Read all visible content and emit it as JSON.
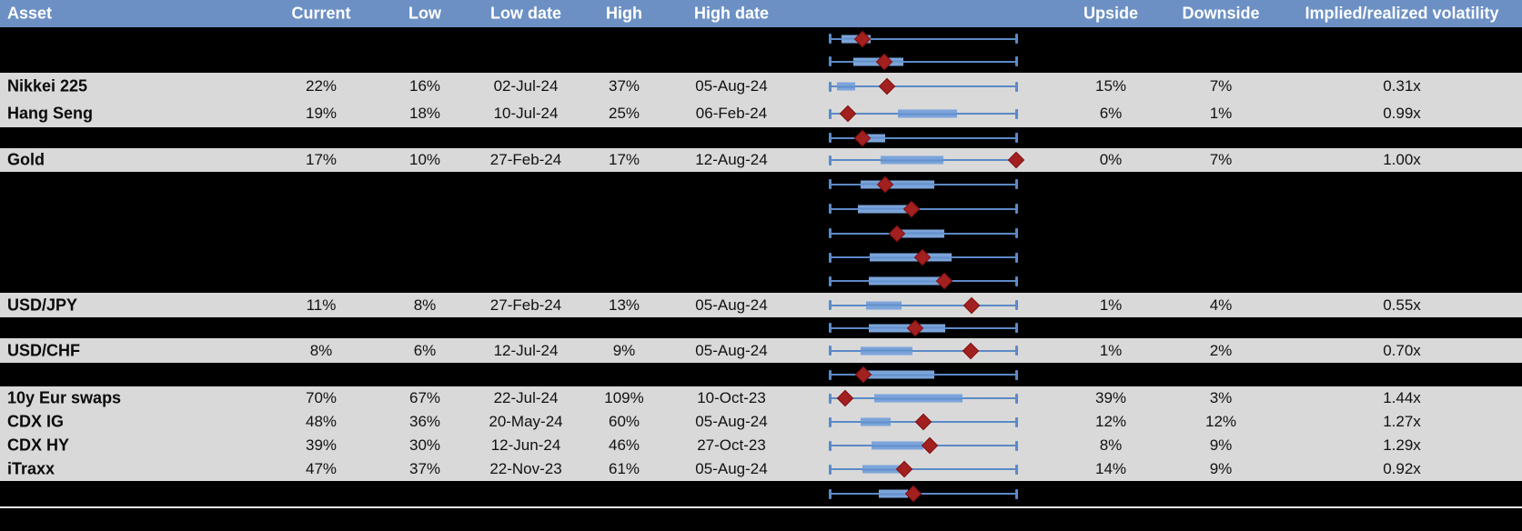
{
  "title": "Implied volatility ranges table with box-whisker charts",
  "colors": {
    "header_bg": "#6C90C4",
    "header_text": "#FFFFFF",
    "light_row_bg": "#D9D9D9",
    "dark_row_bg": "#000000",
    "whisker_blue": "#5B8AC6",
    "box_blue": "#7BA4DA",
    "marker_red": "#A32020",
    "separator": "#E9E9E9"
  },
  "header": {
    "columns": [
      {
        "key": "asset",
        "label": "Asset"
      },
      {
        "key": "current",
        "label": "Current"
      },
      {
        "key": "low",
        "label": "Low"
      },
      {
        "key": "low_date",
        "label": "Low date"
      },
      {
        "key": "high",
        "label": "High"
      },
      {
        "key": "high_date",
        "label": "High date"
      },
      {
        "key": "upside",
        "label": "Upside"
      },
      {
        "key": "downside",
        "label": "Downside"
      },
      {
        "key": "ivrv",
        "label": "Implied/realized volatility"
      }
    ]
  },
  "rows": [
    {
      "shade": "dark",
      "asset": "",
      "current": "",
      "low": "",
      "low_date": "",
      "high": "",
      "high_date": "",
      "upside": "",
      "downside": "",
      "ivrv": "",
      "box": {
        "q1": 0.063,
        "q3": 0.217,
        "cur": 0.176
      }
    },
    {
      "shade": "dark",
      "asset": "",
      "current": "",
      "low": "",
      "low_date": "",
      "high": "",
      "high_date": "",
      "upside": "",
      "downside": "",
      "ivrv": "",
      "box": {
        "q1": 0.128,
        "q3": 0.395,
        "cur": 0.29
      }
    },
    {
      "shade": "light",
      "asset": "Nikkei 225",
      "current": "22%",
      "low": "16%",
      "low_date": "02-Jul-24",
      "high": "37%",
      "high_date": "05-Aug-24",
      "upside": "15%",
      "downside": "7%",
      "ivrv": "0.31x",
      "box": {
        "q1": 0.039,
        "q3": 0.136,
        "cur": 0.306
      }
    },
    {
      "shade": "light",
      "asset": "Hang Seng",
      "current": "19%",
      "low": "18%",
      "low_date": "10-Jul-24",
      "high": "25%",
      "high_date": "06-Feb-24",
      "upside": "6%",
      "downside": "1%",
      "ivrv": "0.99x",
      "box": {
        "q1": 0.363,
        "q3": 0.678,
        "cur": 0.096
      }
    },
    {
      "shade": "dark",
      "asset": "",
      "current": "",
      "low": "",
      "low_date": "",
      "high": "",
      "high_date": "",
      "upside": "",
      "downside": "",
      "ivrv": "",
      "box": {
        "q1": 0.193,
        "q3": 0.298,
        "cur": 0.176
      }
    },
    {
      "shade": "light",
      "asset": "Gold",
      "current": "17%",
      "low": "10%",
      "low_date": "27-Feb-24",
      "high": "17%",
      "high_date": "12-Aug-24",
      "upside": "0%",
      "downside": "7%",
      "ivrv": "1.00x",
      "box": {
        "q1": 0.273,
        "q3": 0.605,
        "cur": 0.993
      }
    },
    {
      "shade": "dark",
      "asset": "",
      "current": "",
      "low": "",
      "low_date": "",
      "high": "",
      "high_date": "",
      "upside": "",
      "downside": "",
      "ivrv": "",
      "box": {
        "q1": 0.165,
        "q3": 0.557,
        "cur": 0.298
      }
    },
    {
      "shade": "dark",
      "asset": "",
      "current": "",
      "low": "",
      "low_date": "",
      "high": "",
      "high_date": "",
      "upside": "",
      "downside": "",
      "ivrv": "",
      "box": {
        "q1": 0.152,
        "q3": 0.456,
        "cur": 0.435
      }
    },
    {
      "shade": "dark",
      "asset": "",
      "current": "",
      "low": "",
      "low_date": "",
      "high": "",
      "high_date": "",
      "upside": "",
      "downside": "",
      "ivrv": "",
      "box": {
        "q1": 0.346,
        "q3": 0.61,
        "cur": 0.359
      }
    },
    {
      "shade": "dark",
      "asset": "",
      "current": "",
      "low": "",
      "low_date": "",
      "high": "",
      "high_date": "",
      "upside": "",
      "downside": "",
      "ivrv": "",
      "box": {
        "q1": 0.214,
        "q3": 0.65,
        "cur": 0.497
      }
    },
    {
      "shade": "dark",
      "asset": "",
      "current": "",
      "low": "",
      "low_date": "",
      "high": "",
      "high_date": "",
      "upside": "",
      "downside": "",
      "ivrv": "",
      "box": {
        "q1": 0.209,
        "q3": 0.634,
        "cur": 0.613
      }
    },
    {
      "shade": "light",
      "asset": "USD/JPY",
      "current": "11%",
      "low": "8%",
      "low_date": "27-Feb-24",
      "high": "13%",
      "high_date": "05-Aug-24",
      "upside": "1%",
      "downside": "4%",
      "ivrv": "0.55x",
      "box": {
        "q1": 0.193,
        "q3": 0.382,
        "cur": 0.759
      }
    },
    {
      "shade": "dark",
      "asset": "",
      "current": "",
      "low": "",
      "low_date": "",
      "high": "",
      "high_date": "",
      "upside": "",
      "downside": "",
      "ivrv": "",
      "box": {
        "q1": 0.209,
        "q3": 0.618,
        "cur": 0.455
      }
    },
    {
      "shade": "light",
      "asset": "USD/CHF",
      "current": "8%",
      "low": "6%",
      "low_date": "12-Jul-24",
      "high": "9%",
      "high_date": "05-Aug-24",
      "upside": "1%",
      "downside": "2%",
      "ivrv": "0.70x",
      "box": {
        "q1": 0.165,
        "q3": 0.443,
        "cur": 0.754
      }
    },
    {
      "shade": "dark",
      "asset": "",
      "current": "",
      "low": "",
      "low_date": "",
      "high": "",
      "high_date": "",
      "upside": "",
      "downside": "",
      "ivrv": "",
      "box": {
        "q1": 0.2,
        "q3": 0.56,
        "cur": 0.18
      }
    },
    {
      "shade": "light",
      "asset": "10y Eur swaps",
      "current": "70%",
      "low": "67%",
      "low_date": "22-Jul-24",
      "high": "109%",
      "high_date": "10-Oct-23",
      "upside": "39%",
      "downside": "3%",
      "ivrv": "1.44x",
      "box": {
        "q1": 0.236,
        "q3": 0.71,
        "cur": 0.084
      }
    },
    {
      "shade": "light",
      "asset": "CDX IG",
      "current": "48%",
      "low": "36%",
      "low_date": "20-May-24",
      "high": "60%",
      "high_date": "05-Aug-24",
      "upside": "12%",
      "downside": "12%",
      "ivrv": "1.27x",
      "box": {
        "q1": 0.165,
        "q3": 0.327,
        "cur": 0.5
      }
    },
    {
      "shade": "light",
      "asset": "CDX HY",
      "current": "39%",
      "low": "30%",
      "low_date": "12-Jun-24",
      "high": "46%",
      "high_date": "27-Oct-23",
      "upside": "8%",
      "downside": "9%",
      "ivrv": "1.29x",
      "box": {
        "q1": 0.225,
        "q3": 0.5,
        "cur": 0.532
      }
    },
    {
      "shade": "light",
      "asset": "iTraxx",
      "current": "47%",
      "low": "37%",
      "low_date": "22-Nov-23",
      "high": "61%",
      "high_date": "05-Aug-24",
      "upside": "14%",
      "downside": "9%",
      "ivrv": "0.92x",
      "box": {
        "q1": 0.176,
        "q3": 0.403,
        "cur": 0.398
      }
    },
    {
      "shade": "dark",
      "asset": "",
      "current": "",
      "low": "",
      "low_date": "",
      "high": "",
      "high_date": "",
      "upside": "",
      "downside": "",
      "ivrv": "",
      "box": {
        "q1": 0.262,
        "q3": 0.419,
        "cur": 0.447
      }
    }
  ],
  "chart_data": {
    "type": "table",
    "note": "Each visible row also carries a horizontal box-whisker chart; whiskers span the Low-High range (0 to 1 normalized), blue box = middle range, red diamond = current level (normalized position given by box.cur).",
    "columns": [
      "Asset",
      "Current",
      "Low",
      "Low date",
      "High",
      "High date",
      "Upside",
      "Downside",
      "Implied/realized volatility"
    ],
    "visible_rows": [
      [
        "Nikkei 225",
        "22%",
        "16%",
        "02-Jul-24",
        "37%",
        "05-Aug-24",
        "15%",
        "7%",
        "0.31x"
      ],
      [
        "Hang Seng",
        "19%",
        "18%",
        "10-Jul-24",
        "25%",
        "06-Feb-24",
        "6%",
        "1%",
        "0.99x"
      ],
      [
        "Gold",
        "17%",
        "10%",
        "27-Feb-24",
        "17%",
        "12-Aug-24",
        "0%",
        "7%",
        "1.00x"
      ],
      [
        "USD/JPY",
        "11%",
        "8%",
        "27-Feb-24",
        "13%",
        "05-Aug-24",
        "1%",
        "4%",
        "0.55x"
      ],
      [
        "USD/CHF",
        "8%",
        "6%",
        "12-Jul-24",
        "9%",
        "05-Aug-24",
        "1%",
        "2%",
        "0.70x"
      ],
      [
        "10y Eur swaps",
        "70%",
        "67%",
        "22-Jul-24",
        "109%",
        "10-Oct-23",
        "39%",
        "3%",
        "1.44x"
      ],
      [
        "CDX IG",
        "48%",
        "36%",
        "20-May-24",
        "60%",
        "05-Aug-24",
        "12%",
        "12%",
        "1.27x"
      ],
      [
        "CDX HY",
        "39%",
        "30%",
        "12-Jun-24",
        "46%",
        "27-Oct-23",
        "8%",
        "9%",
        "1.29x"
      ],
      [
        "iTraxx",
        "47%",
        "37%",
        "22-Nov-23",
        "61%",
        "05-Aug-24",
        "14%",
        "9%",
        "0.92x"
      ]
    ]
  }
}
